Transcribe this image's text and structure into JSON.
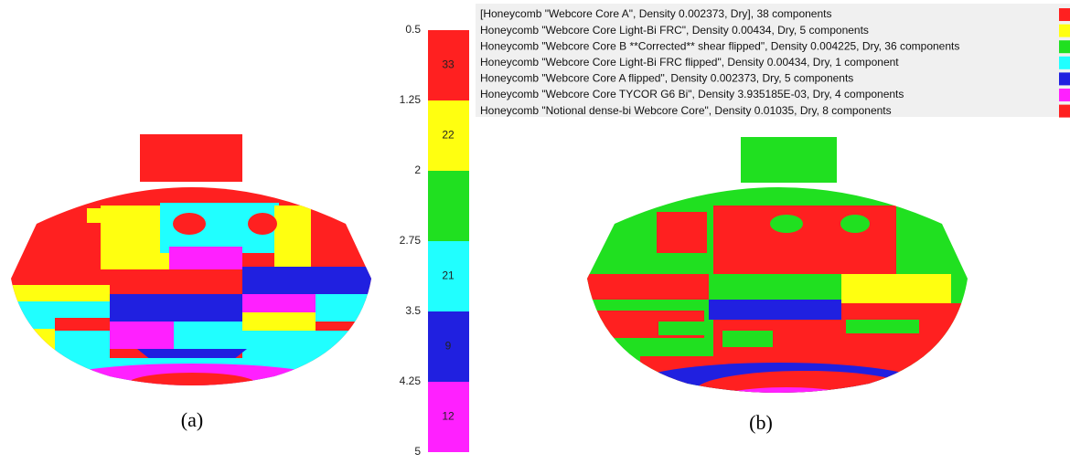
{
  "colorbar": {
    "ticks": [
      0.5,
      1.25,
      2,
      2.75,
      3.5,
      4.25,
      5
    ],
    "segments": [
      {
        "color": "#ff2020",
        "label": 33
      },
      {
        "color": "#ffff10",
        "label": 22
      },
      {
        "color": "#20e020",
        "label": null
      },
      {
        "color": "#20ffff",
        "label": 21
      },
      {
        "color": "#2020e0",
        "label": 9
      },
      {
        "color": "#ff20ff",
        "label": 12
      }
    ]
  },
  "legend": [
    {
      "text": "[Honeycomb \"Webcore Core A\", Density 0.002373, Dry], 38 components",
      "color": "#ff2020"
    },
    {
      "text": "Honeycomb \"Webcore Core Light-Bi FRC\", Density 0.00434, Dry, 5 components",
      "color": "#ffff10"
    },
    {
      "text": "Honeycomb \"Webcore Core B **Corrected** shear flipped\", Density 0.004225, Dry, 36 components",
      "color": "#20e020"
    },
    {
      "text": "Honeycomb \"Webcore Core Light-Bi FRC flipped\", Density 0.00434, Dry, 1 component",
      "color": "#20ffff"
    },
    {
      "text": "Honeycomb \"Webcore Core A flipped\", Density 0.002373, Dry, 5 components",
      "color": "#2020e0"
    },
    {
      "text": "Honeycomb \"Webcore Core TYCOR G6 Bi\", Density 3.935185E-03, Dry, 4 components",
      "color": "#ff20ff"
    },
    {
      "text": "Honeycomb \"Notional dense-bi Webcore Core\", Density 0.01035, Dry, 8 components",
      "color": "#ff2020"
    }
  ],
  "captions": [
    "(a)",
    "(b)"
  ]
}
